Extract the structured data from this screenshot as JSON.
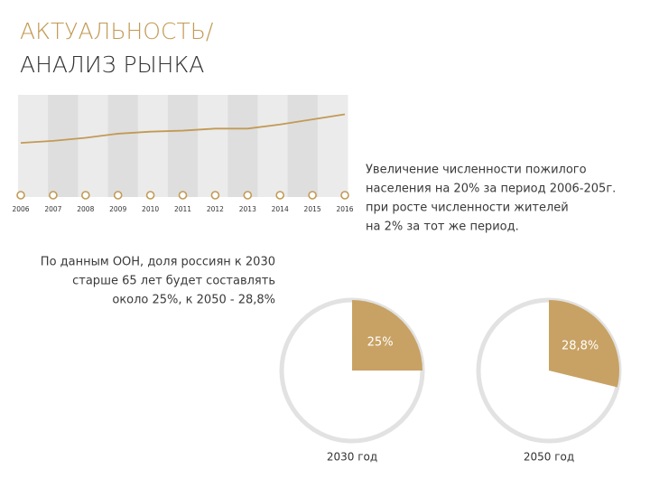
{
  "header": {
    "title_line1": "АКТУАЛЬНОСТЬ/",
    "title_line2": "АНАЛИЗ РЫНКА"
  },
  "text_right": [
    "Увеличение численности пожилого",
    "населения на 20% за период 2006-205г.",
    "при росте численности жителей",
    "на 2% за тот же период."
  ],
  "text_left": [
    "По данным ООН, доля россиян к 2030",
    "старше 65 лет будет составлять",
    "около 25%, к 2050 - 28,8%"
  ],
  "chart_data": [
    {
      "type": "line",
      "x": [
        2006,
        2007,
        2008,
        2009,
        2010,
        2011,
        2012,
        2013,
        2014,
        2015,
        2016
      ],
      "series": [
        {
          "color": "#c29a55",
          "values": [
            53,
            55,
            58,
            62,
            64,
            65,
            67,
            67,
            71,
            76,
            81
          ]
        }
      ],
      "ylim": [
        0,
        100
      ]
    },
    {
      "type": "pie",
      "title": "2030 год",
      "values": [
        25
      ],
      "value_labels": [
        "25%"
      ],
      "color": "#c8a264"
    },
    {
      "type": "pie",
      "title": "2050 год",
      "values": [
        28.8
      ],
      "value_labels": [
        "28,8%"
      ],
      "color": "#c8a264"
    }
  ]
}
